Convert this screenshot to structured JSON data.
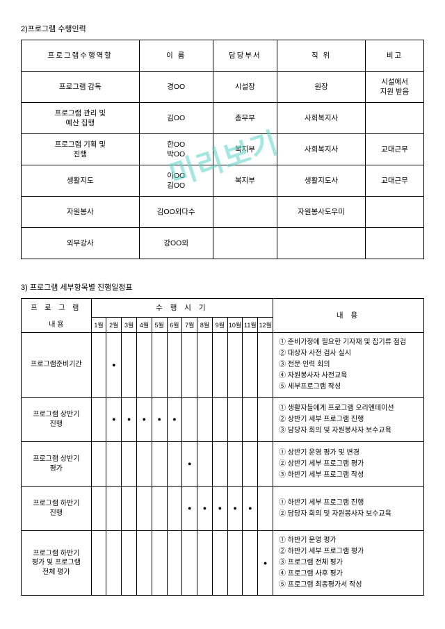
{
  "watermark": "미리보기",
  "section2": {
    "title": "2)프로그램 수행인력",
    "headers": [
      "프로그램수행역할",
      "이    름",
      "담당부서",
      "직    위",
      "비고"
    ],
    "rows": [
      [
        "프로그램 감독",
        "경OO",
        "시설장",
        "원장",
        "시설에서\n지원 받음"
      ],
      [
        "프로그램 관리 및\n예산 집행",
        "김OO",
        "총무부",
        "사회복지사",
        ""
      ],
      [
        "프로그램 기획 및\n진행",
        "한OO\n박OO",
        "복지부",
        "사회복지사",
        "교대근무"
      ],
      [
        "생활지도",
        "이OO\n김OO",
        "복지부",
        "생활지도사",
        "교대근무"
      ],
      [
        "자원봉사",
        "김OO외다수",
        "",
        "자원봉사도우미",
        ""
      ],
      [
        "외부강사",
        "강OO외",
        "",
        "",
        ""
      ]
    ]
  },
  "section3": {
    "title": "3) 프로그램 세부항목별 진행일정표",
    "col_prog_top": "프 로 그 램",
    "col_prog_bot": "내    용",
    "col_time": "수 행 시 기",
    "col_desc": "내    용",
    "months": [
      "1월",
      "2월",
      "3월",
      "4월",
      "5월",
      "6월",
      "7월",
      "8월",
      "9월",
      "10월",
      "11월",
      "12월"
    ],
    "rows": [
      {
        "label": "프로그램준비기간",
        "dots": [
          0,
          1,
          0,
          0,
          0,
          0,
          0,
          0,
          0,
          0,
          0,
          0
        ],
        "desc": "① 준비가정에 필요한 기자재 및 집기류 점검\n② 대상자 사전 검사 실시\n③ 전문 인력 회의\n④ 자원봉사자 사전교육\n⑤ 세부프로그램 작성"
      },
      {
        "label": "프로그램 상반기\n진행",
        "dots": [
          0,
          1,
          1,
          1,
          1,
          1,
          0,
          0,
          0,
          0,
          0,
          0
        ],
        "desc": "① 생활자들에게 프로그램 오리엔테이션\n② 상반기 세부 프로그램 진행\n③ 담당자 회의 및 자원봉사자 보수교육"
      },
      {
        "label": "프로그램 상반기\n평가",
        "dots": [
          0,
          0,
          0,
          0,
          0,
          0,
          1,
          0,
          0,
          0,
          0,
          0
        ],
        "desc": "① 상반기 운영 평가 및 변경\n② 상반기 세부 프로그램 평가\n③ 하반기 세부 프로그램 작성"
      },
      {
        "label": "프로그램 하반기\n진행",
        "dots": [
          0,
          0,
          0,
          0,
          0,
          0,
          1,
          1,
          1,
          1,
          1,
          0
        ],
        "desc": "① 하반기 세부 프로그램 진행\n② 담당자 회의 및 자원봉사자 보수교육"
      },
      {
        "label": "프로그램 하반기\n평가 및 프로그램\n전체 평가",
        "dots": [
          0,
          0,
          0,
          0,
          0,
          0,
          0,
          0,
          0,
          0,
          0,
          1
        ],
        "desc": "① 하반기 운영 평가\n② 하반기 세부 프로그램 평가\n③ 프로그램 전체 평가\n④ 프로그램 사후 평가\n⑤ 프로그램 최종평가서 작성"
      }
    ]
  }
}
